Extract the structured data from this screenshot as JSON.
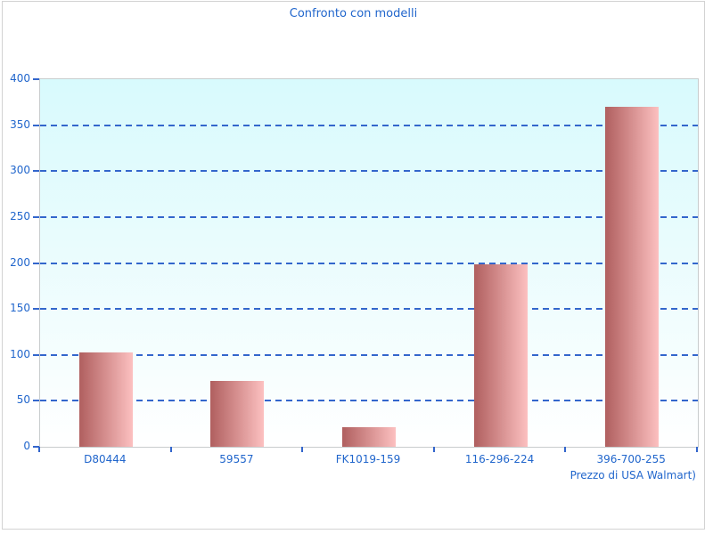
{
  "chart_data": {
    "type": "bar",
    "title": "Confronto con modelli",
    "categories": [
      "D80444",
      "59557",
      "FK1019-159",
      "116-296-224",
      "396-700-255"
    ],
    "values": [
      103,
      72,
      21,
      199,
      370
    ],
    "xlabel": "Prezzo di USA Walmart)",
    "ylabel": "",
    "ylim": [
      0,
      400
    ],
    "ytick_step": 50,
    "yticks": [
      0,
      50,
      100,
      150,
      200,
      250,
      300,
      350,
      400
    ],
    "grid": true,
    "legend": false,
    "colors": {
      "text": "#2166cc",
      "grid": "#3366cc",
      "bar_gradient_start": "#b05f5f",
      "bar_gradient_end": "#fcc0c0",
      "plot_bg_top": "#d8fafd",
      "plot_bg_bottom": "#ffffff",
      "plot_border": "#c8cccd",
      "frame_border": "#d3d3d3"
    }
  }
}
